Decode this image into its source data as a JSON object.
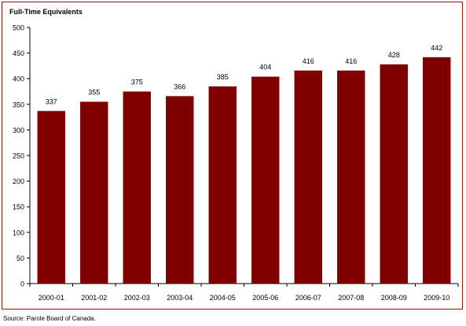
{
  "chart_data": {
    "type": "bar",
    "ylabel": "Full-Time Equivalents",
    "categories": [
      "2000-01",
      "2001-02",
      "2002-03",
      "2003-04",
      "2004-05",
      "2005-06",
      "2006-07",
      "2007-08",
      "2008-09",
      "2009-10"
    ],
    "values": [
      337,
      355,
      375,
      366,
      385,
      404,
      416,
      416,
      428,
      442
    ],
    "data_labels": [
      "337",
      "355",
      "375",
      "366",
      "385",
      "404",
      "416",
      "416",
      "428",
      "442"
    ],
    "ylim": [
      0,
      500
    ],
    "yticks": [
      0,
      50,
      100,
      150,
      200,
      250,
      300,
      350,
      400,
      450,
      500
    ],
    "bar_color": "#800000",
    "grid": false,
    "legend": "none"
  },
  "source": "Source:  Parole Board of Canada."
}
